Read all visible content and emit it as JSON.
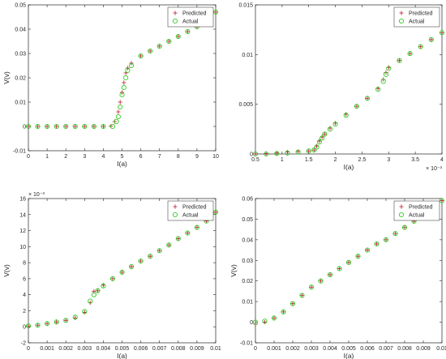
{
  "legend_labels": {
    "predicted": "Predicted",
    "actual": "Actual"
  },
  "colors": {
    "predicted": "#c0152f",
    "actual": "#2ecc1f",
    "axis": "#262626"
  },
  "chart_data": [
    {
      "type": "scatter",
      "xlabel": "I(a)",
      "ylabel": "V(v)",
      "xlim": [
        0,
        10
      ],
      "ylim": [
        -0.01,
        0.05
      ],
      "xticks": [
        "0",
        "1",
        "2",
        "3",
        "4",
        "5",
        "6",
        "7",
        "8",
        "9",
        "10"
      ],
      "yticks": [
        "-0.01",
        "0",
        "0.01",
        "0.02",
        "0.03",
        "0.04",
        "0.05"
      ],
      "x_exponent": "",
      "y_exponent": "",
      "legend_position": "top-right",
      "series": [
        {
          "name": "Predicted",
          "marker": "plus",
          "x": [
            0,
            0.5,
            1,
            1.5,
            2,
            2.5,
            3,
            3.5,
            4,
            4.4,
            4.6,
            4.8,
            4.9,
            5.0,
            5.1,
            5.2,
            5.3,
            5.5,
            6,
            6.5,
            7,
            7.5,
            8,
            8.5,
            9,
            9.5,
            10
          ],
          "y": [
            0,
            0,
            0,
            0,
            0,
            0,
            0,
            0,
            0,
            0.0001,
            0.002,
            0.006,
            0.01,
            0.014,
            0.018,
            0.022,
            0.024,
            0.026,
            0.029,
            0.031,
            0.033,
            0.035,
            0.037,
            0.039,
            0.041,
            0.044,
            0.047
          ]
        },
        {
          "name": "Actual",
          "marker": "circle",
          "x": [
            0,
            0.5,
            1,
            1.5,
            2,
            2.5,
            3,
            3.5,
            4,
            4.5,
            4.7,
            4.8,
            4.9,
            5.0,
            5.1,
            5.2,
            5.3,
            5.5,
            6,
            6.5,
            7,
            7.5,
            8,
            8.5,
            9,
            9.5,
            10
          ],
          "y": [
            0,
            0,
            0,
            0,
            0,
            0,
            0,
            0,
            0,
            0,
            0.002,
            0.004,
            0.008,
            0.013,
            0.016,
            0.02,
            0.023,
            0.025,
            0.029,
            0.031,
            0.033,
            0.035,
            0.037,
            0.039,
            0.041,
            0.044,
            0.047
          ]
        }
      ]
    },
    {
      "type": "scatter",
      "xlabel": "I(a)",
      "ylabel": "",
      "xlim": [
        0.5,
        4
      ],
      "ylim": [
        0,
        0.015
      ],
      "xticks": [
        "0.5",
        "1",
        "1.5",
        "2",
        "2.5",
        "3",
        "3.5",
        "4"
      ],
      "yticks": [
        "0",
        "0.005",
        "0.01",
        "0.015"
      ],
      "x_exponent": "× 10⁻³",
      "y_exponent": "",
      "legend_position": "top-right",
      "series": [
        {
          "name": "Predicted",
          "marker": "plus",
          "x": [
            0.5,
            0.7,
            0.9,
            1.1,
            1.3,
            1.5,
            1.6,
            1.65,
            1.7,
            1.75,
            1.8,
            1.9,
            2.0,
            2.2,
            2.4,
            2.6,
            2.8,
            2.9,
            2.95,
            3.0,
            3.2,
            3.4,
            3.6,
            3.8,
            4.0
          ],
          "y": [
            0,
            5e-05,
            0.0001,
            0.0002,
            0.00025,
            0.0003,
            0.0004,
            0.0008,
            0.0013,
            0.0017,
            0.002,
            0.0026,
            0.0031,
            0.004,
            0.0048,
            0.0056,
            0.0066,
            0.0075,
            0.0082,
            0.0087,
            0.0094,
            0.0101,
            0.0108,
            0.0115,
            0.0122
          ]
        },
        {
          "name": "Actual",
          "marker": "circle",
          "x": [
            0.5,
            0.7,
            0.9,
            1.1,
            1.3,
            1.5,
            1.6,
            1.65,
            1.7,
            1.75,
            1.8,
            1.9,
            2.0,
            2.2,
            2.4,
            2.6,
            2.8,
            2.9,
            2.95,
            3.0,
            3.2,
            3.4,
            3.6,
            3.8,
            4.0
          ],
          "y": [
            0,
            0,
            5e-05,
            0.0001,
            0.0002,
            0.0003,
            0.0004,
            0.0007,
            0.0012,
            0.0016,
            0.002,
            0.0025,
            0.003,
            0.0039,
            0.0048,
            0.0056,
            0.0065,
            0.0073,
            0.008,
            0.0086,
            0.0094,
            0.0101,
            0.0108,
            0.0115,
            0.0122
          ]
        }
      ]
    },
    {
      "type": "scatter",
      "xlabel": "I(a)",
      "ylabel": "V(v)",
      "xlim": [
        0,
        0.01
      ],
      "ylim": [
        -0.002,
        0.016
      ],
      "xticks": [
        "0",
        "0.001",
        "0.002",
        "0.003",
        "0.004",
        "0.005",
        "0.006",
        "0.007",
        "0.008",
        "0.009",
        "0.01"
      ],
      "yticks": [
        "-2",
        "0",
        "2",
        "4",
        "6",
        "8",
        "10",
        "12",
        "14",
        "16"
      ],
      "x_exponent": "",
      "y_exponent": "× 10⁻³",
      "legend_position": "top-right",
      "series": [
        {
          "name": "Predicted",
          "marker": "plus",
          "x": [
            0,
            0.0005,
            0.001,
            0.0015,
            0.002,
            0.0025,
            0.003,
            0.0033,
            0.0035,
            0.0037,
            0.004,
            0.0045,
            0.005,
            0.0055,
            0.006,
            0.0065,
            0.007,
            0.0075,
            0.008,
            0.0085,
            0.009,
            0.0095,
            0.01
          ],
          "y": [
            0.0001,
            0.0002,
            0.0004,
            0.0006,
            0.0008,
            0.0011,
            0.0018,
            0.003,
            0.0044,
            0.0045,
            0.0052,
            0.006,
            0.0068,
            0.0075,
            0.0082,
            0.0088,
            0.0095,
            0.0102,
            0.011,
            0.0117,
            0.0124,
            0.0132,
            0.0143
          ]
        },
        {
          "name": "Actual",
          "marker": "circle",
          "x": [
            0,
            0.0005,
            0.001,
            0.0015,
            0.002,
            0.0025,
            0.003,
            0.0033,
            0.0035,
            0.0037,
            0.004,
            0.0045,
            0.005,
            0.0055,
            0.006,
            0.0065,
            0.007,
            0.0075,
            0.008,
            0.0085,
            0.009,
            0.0095,
            0.01
          ],
          "y": [
            0.0001,
            0.0002,
            0.0004,
            0.0006,
            0.0008,
            0.0012,
            0.0019,
            0.0032,
            0.004,
            0.0045,
            0.0051,
            0.006,
            0.0068,
            0.0075,
            0.0082,
            0.0088,
            0.0095,
            0.0102,
            0.011,
            0.0117,
            0.0124,
            0.0132,
            0.0143
          ]
        }
      ]
    },
    {
      "type": "scatter",
      "xlabel": "I(a)",
      "ylabel": "V(v)",
      "xlim": [
        0,
        0.01
      ],
      "ylim": [
        -0.01,
        0.06
      ],
      "xticks": [
        "0",
        "0.001",
        "0.002",
        "0.003",
        "0.004",
        "0.005",
        "0.006",
        "0.007",
        "0.008",
        "0.009",
        "0.01"
      ],
      "yticks": [
        "-0.01",
        "0",
        "0.01",
        "0.02",
        "0.03",
        "0.04",
        "0.05",
        "0.06"
      ],
      "x_exponent": "",
      "y_exponent": "",
      "legend_position": "top-right",
      "series": [
        {
          "name": "Predicted",
          "marker": "plus",
          "x": [
            0,
            0.0005,
            0.001,
            0.0015,
            0.002,
            0.0025,
            0.003,
            0.0035,
            0.004,
            0.0045,
            0.005,
            0.0055,
            0.006,
            0.0065,
            0.007,
            0.0075,
            0.008,
            0.0085,
            0.009,
            0.0095,
            0.01
          ],
          "y": [
            -0.001,
            0,
            0.002,
            0.005,
            0.009,
            0.013,
            0.017,
            0.02,
            0.023,
            0.026,
            0.029,
            0.032,
            0.035,
            0.038,
            0.04,
            0.043,
            0.046,
            0.049,
            0.052,
            0.055,
            0.059
          ]
        },
        {
          "name": "Actual",
          "marker": "circle",
          "x": [
            0,
            0.0005,
            0.001,
            0.0015,
            0.002,
            0.0025,
            0.003,
            0.0035,
            0.004,
            0.0045,
            0.005,
            0.0055,
            0.006,
            0.0065,
            0.007,
            0.0075,
            0.008,
            0.0085,
            0.009,
            0.0095,
            0.01
          ],
          "y": [
            0,
            0.0005,
            0.002,
            0.005,
            0.009,
            0.013,
            0.017,
            0.02,
            0.023,
            0.026,
            0.029,
            0.032,
            0.035,
            0.038,
            0.04,
            0.043,
            0.046,
            0.049,
            0.052,
            0.055,
            0.059
          ]
        }
      ]
    }
  ]
}
